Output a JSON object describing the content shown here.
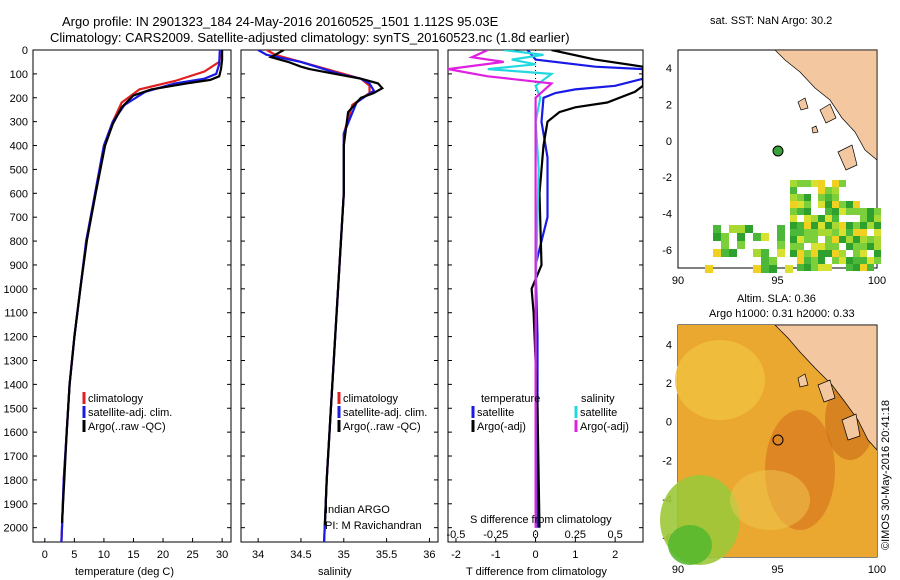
{
  "header": {
    "line1": "Argo profile: IN 2901323_184 24-May-2016 20160525_1501 1.112S 95.03E",
    "line2": "Climatology: CARS2009. Satellite-adjusted climatology: synTS_20160523.nc (1.8d earlier)"
  },
  "colors": {
    "climatology": "#e02020",
    "satellite": "#1a1ae6",
    "argo": "#000000",
    "sal_sat": "#22d8e0",
    "sal_argo": "#e020e0",
    "land": "#f3c8a0"
  },
  "depth_axis": {
    "ticks": [
      "0",
      "100",
      "200",
      "300",
      "400",
      "500",
      "600",
      "700",
      "800",
      "900",
      "1000",
      "1100",
      "1200",
      "1300",
      "1400",
      "1500",
      "1600",
      "1700",
      "1800",
      "1900",
      "2000"
    ],
    "ylim": [
      0,
      2060
    ]
  },
  "panels": {
    "temperature": {
      "xlabel": "temperature (deg C)",
      "ticks": [
        "0",
        "5",
        "10",
        "15",
        "20",
        "25",
        "30"
      ],
      "legend": [
        "climatology",
        "satellite-adj. clim.",
        "Argo(..raw -QC)"
      ]
    },
    "salinity": {
      "xlabel": "salinity",
      "ticks": [
        "34",
        "34.5",
        "35",
        "35.5",
        "36"
      ],
      "legend": [
        "climatology",
        "satellite-adj. clim.",
        "Argo(..raw -QC)"
      ],
      "note1": "Indian ARGO",
      "note2": "PI: M Ravichandran"
    },
    "difference": {
      "top_ticks": [
        "-0.5",
        "-0.25",
        "0",
        "0.25",
        "0.5"
      ],
      "bottom_ticks": [
        "-2",
        "-1",
        "0",
        "1",
        "2"
      ],
      "top_label": "S difference from climatology",
      "xlabel": "T difference from climatology",
      "legend_temp_title": "temperature",
      "legend_sal_title": "salinity",
      "legend_temp": [
        "satellite",
        "Argo(-adj)"
      ],
      "legend_sal": [
        "satellite",
        "Argo(-adj)"
      ]
    }
  },
  "map_sst": {
    "title": "sat. SST: NaN Argo: 30.2",
    "xticks": [
      "90",
      "95",
      "100"
    ],
    "yticks": [
      "4",
      "2",
      "0",
      "-2",
      "-4",
      "-6"
    ]
  },
  "map_sla": {
    "title1": "Altim. SLA: 0.36",
    "title2": "Argo h1000: 0.31 h2000: 0.33",
    "xticks": [
      "90",
      "95",
      "100"
    ],
    "yticks": [
      "4",
      "2",
      "0",
      "-2",
      "-4",
      "-6"
    ]
  },
  "stamp": "©IMOS 30-May-2016 20:41:18",
  "chart_data": [
    {
      "type": "line",
      "title": "",
      "xlabel": "temperature (deg C)",
      "ylabel": "",
      "xlim": [
        -2,
        31.5
      ],
      "ylim": [
        0,
        2060
      ],
      "y_reversed": true,
      "series": [
        {
          "name": "climatology",
          "points": [
            [
              30.0,
              0
            ],
            [
              29.5,
              50
            ],
            [
              27,
              90
            ],
            [
              22,
              130
            ],
            [
              16,
              165
            ],
            [
              13,
              220
            ],
            [
              11.5,
              300
            ],
            [
              10,
              400
            ],
            [
              8.5,
              600
            ],
            [
              7,
              800
            ],
            [
              6,
              1000
            ],
            [
              5,
              1200
            ],
            [
              4.2,
              1400
            ],
            [
              3.7,
              1600
            ],
            [
              3.2,
              1800
            ],
            [
              2.9,
              2000
            ],
            [
              2.8,
              2060
            ]
          ]
        },
        {
          "name": "satellite-adj. clim.",
          "points": [
            [
              29.6,
              0
            ],
            [
              29.5,
              60
            ],
            [
              29,
              100
            ],
            [
              27,
              120
            ],
            [
              22,
              140
            ],
            [
              17,
              175
            ],
            [
              13.5,
              230
            ],
            [
              11.5,
              300
            ],
            [
              10,
              400
            ],
            [
              8.5,
              600
            ],
            [
              7,
              800
            ],
            [
              6,
              1000
            ],
            [
              5,
              1200
            ],
            [
              4.2,
              1400
            ],
            [
              3.7,
              1600
            ],
            [
              3.2,
              1800
            ],
            [
              2.9,
              2000
            ],
            [
              2.8,
              2060
            ]
          ]
        },
        {
          "name": "Argo(..raw -QC)",
          "points": [
            [
              30.0,
              0
            ],
            [
              30.0,
              40
            ],
            [
              29.8,
              80
            ],
            [
              29.5,
              110
            ],
            [
              28,
              125
            ],
            [
              24,
              140
            ],
            [
              18,
              165
            ],
            [
              15,
              190
            ],
            [
              13,
              240
            ],
            [
              11.5,
              310
            ],
            [
              10.2,
              400
            ],
            [
              8.6,
              600
            ],
            [
              7.1,
              800
            ],
            [
              6,
              1000
            ],
            [
              5,
              1200
            ],
            [
              4.2,
              1400
            ],
            [
              3.7,
              1600
            ],
            [
              3.3,
              1800
            ],
            [
              2.9,
              1980
            ]
          ]
        }
      ]
    },
    {
      "type": "line",
      "title": "",
      "xlabel": "salinity",
      "ylabel": "",
      "xlim": [
        33.8,
        36.1
      ],
      "ylim": [
        0,
        2060
      ],
      "y_reversed": true,
      "series": [
        {
          "name": "climatology",
          "points": [
            [
              34.1,
              0
            ],
            [
              34.2,
              20
            ],
            [
              34.6,
              60
            ],
            [
              35.0,
              100
            ],
            [
              35.2,
              120
            ],
            [
              35.3,
              150
            ],
            [
              35.3,
              180
            ],
            [
              35.1,
              230
            ],
            [
              35.0,
              350
            ],
            [
              35.0,
              600
            ],
            [
              34.95,
              900
            ],
            [
              34.9,
              1200
            ],
            [
              34.85,
              1500
            ],
            [
              34.8,
              1800
            ],
            [
              34.77,
              2060
            ]
          ]
        },
        {
          "name": "satellite-adj. clim.",
          "points": [
            [
              34.0,
              0
            ],
            [
              34.1,
              20
            ],
            [
              34.5,
              50
            ],
            [
              34.95,
              100
            ],
            [
              35.2,
              120
            ],
            [
              35.3,
              140
            ],
            [
              35.35,
              170
            ],
            [
              35.15,
              220
            ],
            [
              35.0,
              350
            ],
            [
              35.0,
              600
            ],
            [
              34.95,
              900
            ],
            [
              34.9,
              1200
            ],
            [
              34.85,
              1500
            ],
            [
              34.8,
              1800
            ],
            [
              34.77,
              2060
            ]
          ]
        },
        {
          "name": "Argo(..raw -QC)",
          "points": [
            [
              34.3,
              0
            ],
            [
              34.15,
              30
            ],
            [
              34.35,
              50
            ],
            [
              34.5,
              70
            ],
            [
              34.6,
              80
            ],
            [
              34.9,
              100
            ],
            [
              35.2,
              120
            ],
            [
              35.4,
              140
            ],
            [
              35.45,
              160
            ],
            [
              35.35,
              180
            ],
            [
              35.2,
              200
            ],
            [
              35.05,
              260
            ],
            [
              35.0,
              400
            ],
            [
              35.0,
              600
            ],
            [
              34.95,
              900
            ],
            [
              34.9,
              1200
            ],
            [
              34.85,
              1500
            ],
            [
              34.8,
              1800
            ],
            [
              34.78,
              1990
            ]
          ]
        }
      ]
    },
    {
      "type": "line",
      "title": "",
      "xlabel": "T difference from climatology",
      "ylabel": "",
      "xlim": [
        -2.2,
        2.7
      ],
      "ylim": [
        0,
        2060
      ],
      "y_reversed": true,
      "series": [
        {
          "name": "temperature satellite",
          "axis": "T",
          "points": [
            [
              -0.2,
              0
            ],
            [
              0,
              40
            ],
            [
              1.5,
              70
            ],
            [
              2.7,
              80
            ],
            [
              2.7,
              95
            ],
            [
              2.7,
              120
            ],
            [
              2.0,
              150
            ],
            [
              1.0,
              165
            ],
            [
              0.5,
              180
            ],
            [
              0.2,
              200
            ],
            [
              0.15,
              300
            ],
            [
              0.3,
              450
            ],
            [
              0.3,
              700
            ],
            [
              0.15,
              800
            ],
            [
              0,
              900
            ],
            [
              0.05,
              1200
            ],
            [
              0.05,
              1600
            ],
            [
              0.05,
              2000
            ]
          ]
        },
        {
          "name": "temperature Argo(-adj)",
          "axis": "T",
          "points": [
            [
              0.4,
              0
            ],
            [
              1.5,
              40
            ],
            [
              2.7,
              70
            ],
            [
              2.7,
              150
            ],
            [
              2.5,
              175
            ],
            [
              1.8,
              220
            ],
            [
              1.0,
              240
            ],
            [
              0.6,
              260
            ],
            [
              0.3,
              300
            ],
            [
              0.2,
              400
            ],
            [
              0.1,
              600
            ],
            [
              0.15,
              900
            ],
            [
              -0.1,
              1000
            ],
            [
              -0.05,
              1100
            ],
            [
              0.05,
              1500
            ],
            [
              0.1,
              2000
            ]
          ]
        },
        {
          "name": "salinity satellite",
          "axis": "S",
          "points": [
            [
              -0.2,
              0
            ],
            [
              0.05,
              20
            ],
            [
              -0.15,
              40
            ],
            [
              0.0,
              60
            ],
            [
              -0.3,
              80
            ],
            [
              0.1,
              100
            ],
            [
              0.0,
              150
            ],
            [
              0.03,
              200
            ],
            [
              0.0,
              300
            ],
            [
              0.02,
              500
            ],
            [
              0.0,
              1000
            ],
            [
              0.0,
              2000
            ]
          ]
        },
        {
          "name": "salinity Argo(-adj)",
          "axis": "S",
          "points": [
            [
              -0.3,
              0
            ],
            [
              -0.4,
              30
            ],
            [
              -0.2,
              50
            ],
            [
              -0.55,
              80
            ],
            [
              -0.3,
              110
            ],
            [
              0.1,
              140
            ],
            [
              0.0,
              200
            ],
            [
              0.0,
              400
            ],
            [
              0.0,
              1000
            ],
            [
              0.0,
              2000
            ]
          ]
        }
      ]
    }
  ]
}
